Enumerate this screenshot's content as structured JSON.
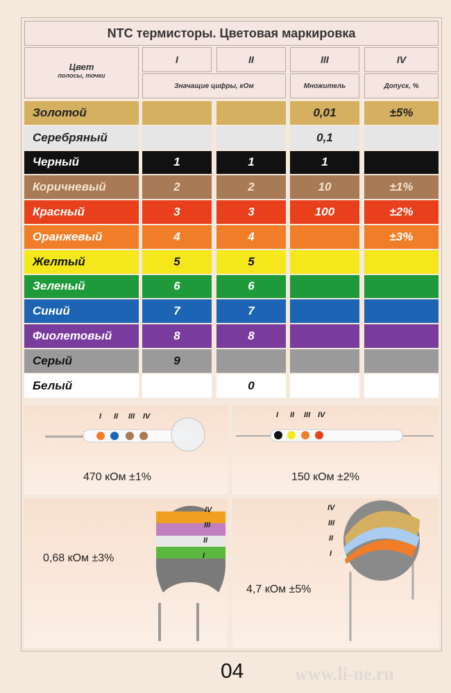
{
  "header": {
    "title": "NTC термисторы. Цветовая маркировка"
  },
  "table": {
    "columns": [
      "Цвет",
      "I",
      "II",
      "III",
      "IV"
    ],
    "color_subtitle": "полосы, точки",
    "subheaders": [
      "Значащие цифры, кОм",
      "Множитель",
      "Допуск, %"
    ],
    "rows": [
      [
        "Золотой",
        null,
        null,
        "0,01",
        "±5%"
      ],
      [
        "Серебряный",
        null,
        null,
        "0,1",
        null
      ],
      [
        "Черный",
        "1",
        "1",
        "1",
        null
      ],
      [
        "Коричневый",
        "2",
        "2",
        "10",
        "±1%"
      ],
      [
        "Красный",
        "3",
        "3",
        "100",
        "±2%"
      ],
      [
        "Оранжевый",
        "4",
        "4",
        null,
        "±3%"
      ],
      [
        "Желтый",
        "5",
        "5",
        null,
        null
      ],
      [
        "Зеленый",
        "6",
        "6",
        null,
        null
      ],
      [
        "Синий",
        "7",
        "7",
        null,
        null
      ],
      [
        "Фиолетовый",
        "8",
        "8",
        null,
        null
      ],
      [
        "Серый",
        "9",
        null,
        null,
        null
      ],
      [
        "Белый",
        null,
        "0",
        null,
        null
      ]
    ]
  },
  "examples": [
    {
      "marks": [
        "I",
        "II",
        "III",
        "IV"
      ],
      "label": "470 кОм ±1%"
    },
    {
      "marks": [
        "I",
        "II",
        "III",
        "IV"
      ],
      "label": "150 кОм ±2%"
    },
    {
      "marks": [
        "IV",
        "III",
        "II",
        "I"
      ],
      "label": "0,68 кОм ±3%"
    },
    {
      "marks": [
        "IV",
        "III",
        "II",
        "I"
      ],
      "label": "4,7 кОм ±5%"
    }
  ],
  "page_number": "04",
  "watermark": "www.li-ne.ru"
}
